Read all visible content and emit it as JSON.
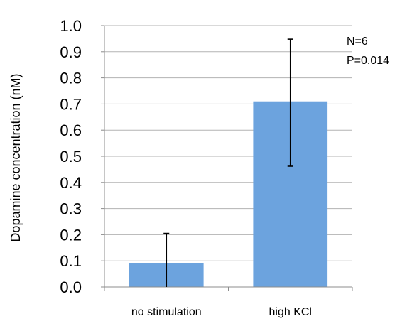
{
  "chart_data": {
    "type": "bar",
    "categories": [
      "no stimulation",
      "high KCl"
    ],
    "values": [
      0.09,
      0.71
    ],
    "error_upper": [
      0.205,
      0.948
    ],
    "error_lower": [
      0.0,
      0.462
    ],
    "ylabel": "Dopamine concentration (nM)",
    "xlabel": "",
    "ylim": [
      0,
      1.0
    ],
    "yticks": [
      "0.0",
      "0.1",
      "0.2",
      "0.3",
      "0.4",
      "0.5",
      "0.6",
      "0.7",
      "0.8",
      "0.9",
      "1.0"
    ],
    "grid": "horizontal",
    "annotations": [
      "N=6",
      "P=0.014"
    ],
    "colors": {
      "bar": "#6ca3de",
      "grid": "#b3b3b3",
      "axis": "#8c8c8c",
      "error": "#000000"
    }
  }
}
